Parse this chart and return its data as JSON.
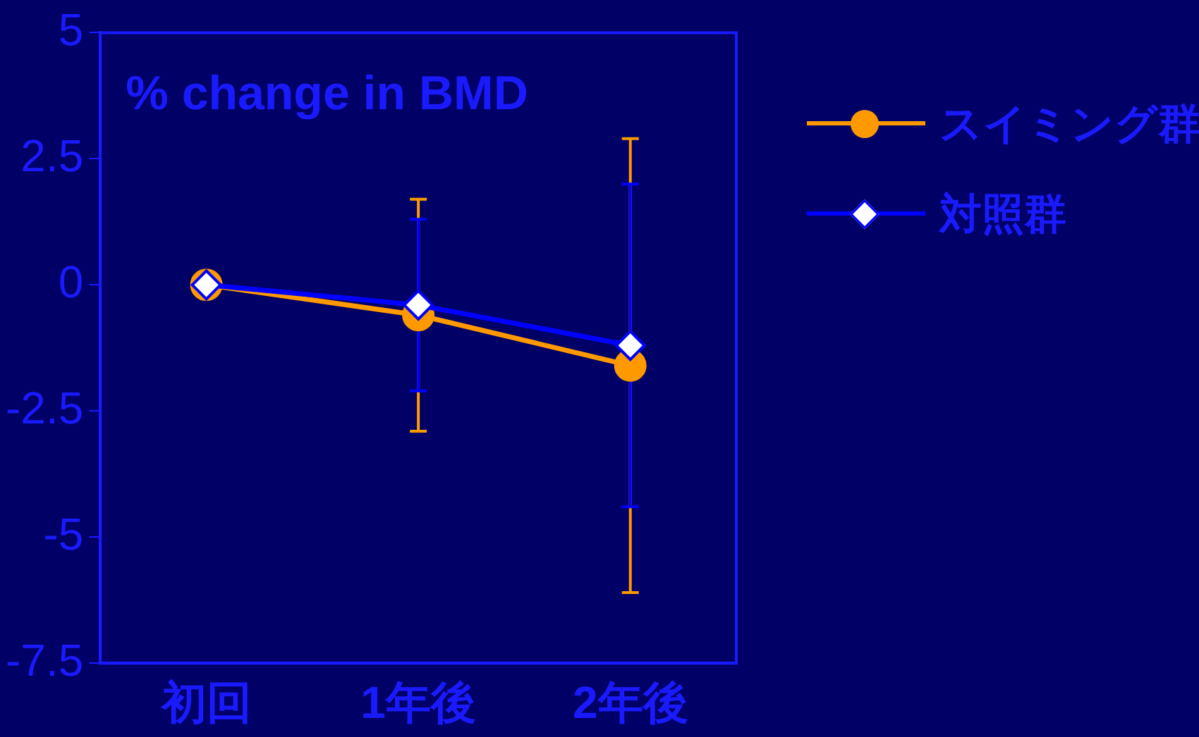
{
  "chart_data": {
    "type": "line",
    "title": "% change in BMD",
    "categories": [
      "初回",
      "1年後",
      "2年後"
    ],
    "series": [
      {
        "name": "スイミング群",
        "color": "#ff9900",
        "marker": "circle",
        "values": [
          0,
          -0.6,
          -1.6
        ],
        "errors": [
          null,
          2.3,
          4.5
        ]
      },
      {
        "name": "対照群",
        "color": "#0000ff",
        "marker": "diamond",
        "values": [
          0,
          -0.4,
          -1.2
        ],
        "errors": [
          null,
          1.7,
          3.2
        ]
      }
    ],
    "ylim": [
      -7.5,
      5
    ],
    "yticks": [
      -7.5,
      -5,
      -2.5,
      0,
      2.5,
      5
    ],
    "grid": false,
    "legend": "right",
    "line_style": "solid"
  }
}
